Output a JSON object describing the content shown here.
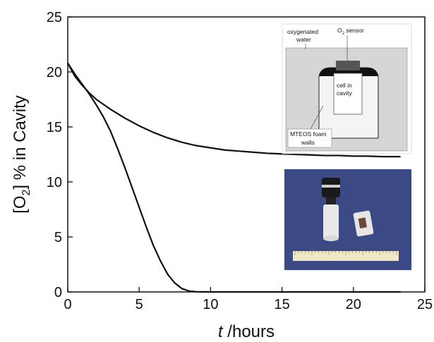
{
  "chart_data": {
    "type": "line",
    "xlabel_italic": "t",
    "xlabel_rest": " /hours",
    "ylabel_prefix": "[O",
    "ylabel_sub": "2",
    "ylabel_suffix": "] % in Cavity",
    "xlim": [
      0,
      25
    ],
    "ylim": [
      0,
      25
    ],
    "xticks": [
      0,
      5,
      10,
      15,
      20,
      25
    ],
    "yticks": [
      0,
      5,
      10,
      15,
      20,
      25
    ],
    "grid": false,
    "series": [
      {
        "x": [
          0,
          0.5,
          1,
          1.5,
          2,
          3,
          4,
          5,
          6,
          7,
          8,
          9,
          10,
          11,
          12,
          13,
          14,
          15,
          16,
          17,
          18,
          19,
          20,
          21,
          22,
          23.3
        ],
        "y": [
          20.8,
          19.6,
          18.8,
          18.1,
          17.5,
          16.6,
          15.8,
          15.1,
          14.5,
          14.0,
          13.6,
          13.3,
          13.1,
          12.9,
          12.8,
          12.7,
          12.6,
          12.55,
          12.5,
          12.45,
          12.4,
          12.4,
          12.35,
          12.35,
          12.3,
          12.3
        ]
      },
      {
        "x": [
          0,
          0.5,
          1,
          1.5,
          2,
          2.5,
          3,
          3.5,
          4,
          4.5,
          5,
          5.5,
          6,
          6.5,
          7,
          7.5,
          8,
          8.5,
          9,
          9.5,
          10,
          12,
          15,
          20,
          23.3
        ],
        "y": [
          20.8,
          19.8,
          18.9,
          18.0,
          17.0,
          15.9,
          14.6,
          13.0,
          11.3,
          9.5,
          7.7,
          5.9,
          4.2,
          2.8,
          1.6,
          0.8,
          0.3,
          0.08,
          0.02,
          0.01,
          0,
          0,
          0,
          0,
          0
        ]
      }
    ]
  },
  "inset_diagram": {
    "label_water_line1": "oxygenated",
    "label_water_line2": "water",
    "label_sensor_prefix": "O",
    "label_sensor_sub": "2",
    "label_sensor_suffix": " sensor",
    "label_cell_line1": "cell in",
    "label_cell_line2": "cavity",
    "label_foam_line1": "MTEOS foam",
    "label_foam_line2": "walls",
    "colors": {
      "water": "#d6d6d6",
      "foam": "#f2f2f2",
      "sensor": "#555555",
      "photo_bg": "#3f4e8c",
      "curve": "#111111"
    }
  }
}
